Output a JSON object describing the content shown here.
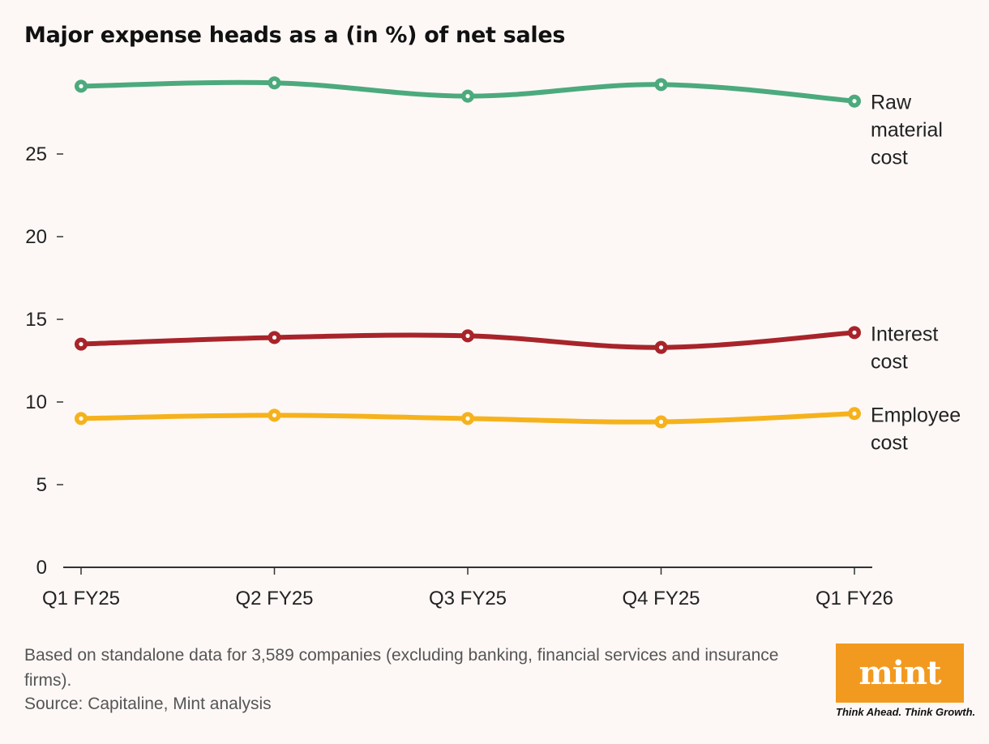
{
  "title": "Major expense heads as a (in %) of net sales",
  "footnote": "Based on standalone data for 3,589 companies (excluding banking, financial services and insurance firms).",
  "source": "Source: Capitaline, Mint analysis",
  "logo": {
    "text": "mint",
    "tagline": "Think Ahead. Think Growth.",
    "color": "#f29a1f"
  },
  "chart_data": {
    "type": "line",
    "categories": [
      "Q1 FY25",
      "Q2 FY25",
      "Q3 FY25",
      "Q4 FY25",
      "Q1 FY26"
    ],
    "ylim": [
      0,
      30
    ],
    "yticks": [
      0,
      5,
      10,
      15,
      20,
      25
    ],
    "grid": false,
    "legend": "inline-right",
    "series": [
      {
        "name": "Raw material cost",
        "label_lines": [
          "Raw",
          "material",
          "cost"
        ],
        "color": "#4caa7d",
        "values": [
          29.1,
          29.3,
          28.5,
          29.2,
          28.2
        ]
      },
      {
        "name": "Interest cost",
        "label_lines": [
          "Interest",
          "cost"
        ],
        "color": "#a8242a",
        "values": [
          13.5,
          13.9,
          14.0,
          13.3,
          14.2
        ]
      },
      {
        "name": "Employee cost",
        "label_lines": [
          "Employee",
          "cost"
        ],
        "color": "#f6b21c",
        "values": [
          9.0,
          9.2,
          9.0,
          8.8,
          9.3
        ]
      }
    ]
  }
}
